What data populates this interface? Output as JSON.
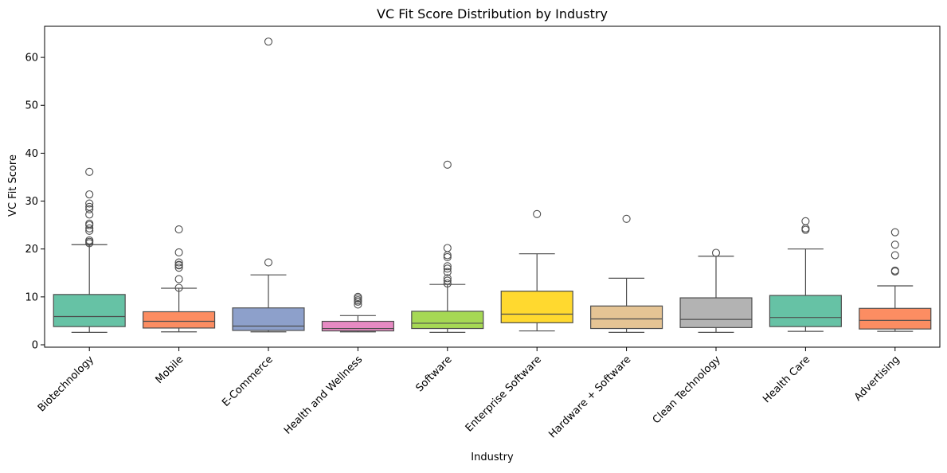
{
  "chart_data": {
    "type": "box",
    "title": "VC Fit Score Distribution by Industry",
    "xlabel": "Industry",
    "ylabel": "VC Fit Score",
    "ylim": [
      -0.5,
      66.5
    ],
    "yticks": [
      0,
      10,
      20,
      30,
      40,
      50,
      60
    ],
    "grid": false,
    "categories": [
      "Biotechnology",
      "Mobile",
      "E-Commerce",
      "Health and Wellness",
      "Software",
      "Enterprise Software",
      "Hardware + Software",
      "Clean Technology",
      "Health Care",
      "Advertising"
    ],
    "colors": [
      "#66c2a5",
      "#fc8d62",
      "#8da0cb",
      "#e78ac3",
      "#a6d854",
      "#ffd92f",
      "#e5c494",
      "#b3b3b3",
      "#66c2a5",
      "#fc8d62"
    ],
    "boxes": [
      {
        "whisker_low": 2.6,
        "q1": 3.8,
        "median": 5.9,
        "q3": 10.5,
        "whisker_high": 20.9,
        "outliers": [
          21.2,
          21.5,
          21.8,
          23.8,
          24.3,
          25.0,
          25.3,
          27.2,
          28.3,
          28.8,
          29.5,
          31.4,
          36.1
        ]
      },
      {
        "whisker_low": 2.7,
        "q1": 3.5,
        "median": 4.9,
        "q3": 6.9,
        "whisker_high": 11.8,
        "outliers": [
          11.9,
          13.7,
          16.1,
          16.6,
          16.7,
          17.2,
          19.3,
          24.1
        ]
      },
      {
        "whisker_low": 2.7,
        "q1": 3.0,
        "median": 3.9,
        "q3": 7.7,
        "whisker_high": 14.6,
        "outliers": [
          17.2,
          63.3
        ]
      },
      {
        "whisker_low": 2.7,
        "q1": 2.9,
        "median": 3.4,
        "q3": 4.9,
        "whisker_high": 6.1,
        "outliers": [
          8.4,
          9.0,
          9.3,
          9.7,
          10.0
        ]
      },
      {
        "whisker_low": 2.6,
        "q1": 3.4,
        "median": 4.5,
        "q3": 7.0,
        "whisker_high": 12.6,
        "outliers": [
          12.8,
          13.4,
          13.9,
          15.2,
          15.9,
          16.4,
          18.3,
          18.7,
          20.2,
          37.6
        ]
      },
      {
        "whisker_low": 2.9,
        "q1": 4.6,
        "median": 6.4,
        "q3": 11.2,
        "whisker_high": 19.0,
        "outliers": [
          27.3
        ]
      },
      {
        "whisker_low": 2.6,
        "q1": 3.4,
        "median": 5.4,
        "q3": 8.1,
        "whisker_high": 13.9,
        "outliers": [
          26.3
        ]
      },
      {
        "whisker_low": 2.6,
        "q1": 3.6,
        "median": 5.3,
        "q3": 9.8,
        "whisker_high": 18.5,
        "outliers": [
          19.2
        ]
      },
      {
        "whisker_low": 2.8,
        "q1": 3.8,
        "median": 5.7,
        "q3": 10.3,
        "whisker_high": 20.0,
        "outliers": [
          24.0,
          24.3,
          25.8
        ]
      },
      {
        "whisker_low": 2.8,
        "q1": 3.3,
        "median": 5.1,
        "q3": 7.6,
        "whisker_high": 12.3,
        "outliers": [
          15.3,
          15.5,
          18.7,
          20.9,
          23.5
        ]
      }
    ]
  }
}
